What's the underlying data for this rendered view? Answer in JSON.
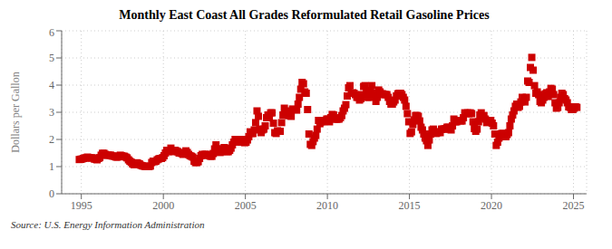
{
  "chart_data": {
    "type": "scatter",
    "title": "Monthly East Coast All Grades Reformulated Retail Gasoline Prices",
    "ylabel": "Dollars per Gallon",
    "annotation": "Source: U.S. Energy Information Administration",
    "color": "#cc0000",
    "marker": "square",
    "grid": true,
    "xlim": [
      1993.8,
      2025.8
    ],
    "xticks": [
      1995,
      2000,
      2005,
      2010,
      2015,
      2020,
      2025
    ],
    "ylim": [
      0,
      6
    ],
    "yticks": [
      0,
      1,
      2,
      3,
      4,
      5,
      6
    ],
    "x": [
      1994.875,
      1994.9583,
      1995.0417,
      1995.125,
      1995.2083,
      1995.2917,
      1995.375,
      1995.4583,
      1995.5417,
      1995.625,
      1995.7083,
      1995.7917,
      1995.875,
      1995.9583,
      1996.0417,
      1996.125,
      1996.2083,
      1996.2917,
      1996.375,
      1996.4583,
      1996.5417,
      1996.625,
      1996.7083,
      1996.7917,
      1996.875,
      1996.9583,
      1997.0417,
      1997.125,
      1997.2083,
      1997.2917,
      1997.375,
      1997.4583,
      1997.5417,
      1997.625,
      1997.7083,
      1997.7917,
      1997.875,
      1997.9583,
      1998.0417,
      1998.125,
      1998.2083,
      1998.2917,
      1998.375,
      1998.4583,
      1998.5417,
      1998.625,
      1998.7083,
      1998.7917,
      1998.875,
      1998.9583,
      1999.0417,
      1999.125,
      1999.2083,
      1999.2917,
      1999.375,
      1999.4583,
      1999.5417,
      1999.625,
      1999.7083,
      1999.7917,
      1999.875,
      1999.9583,
      2000.0417,
      2000.125,
      2000.2083,
      2000.2917,
      2000.375,
      2000.4583,
      2000.5417,
      2000.625,
      2000.7083,
      2000.7917,
      2000.875,
      2000.9583,
      2001.0417,
      2001.125,
      2001.2083,
      2001.2917,
      2001.375,
      2001.4583,
      2001.5417,
      2001.625,
      2001.7083,
      2001.7917,
      2001.875,
      2001.9583,
      2002.0417,
      2002.125,
      2002.2083,
      2002.2917,
      2002.375,
      2002.4583,
      2002.5417,
      2002.625,
      2002.7083,
      2002.7917,
      2002.875,
      2002.9583,
      2003.0417,
      2003.125,
      2003.2083,
      2003.2917,
      2003.375,
      2003.4583,
      2003.5417,
      2003.625,
      2003.7083,
      2003.7917,
      2003.875,
      2003.9583,
      2004.0417,
      2004.125,
      2004.2083,
      2004.2917,
      2004.375,
      2004.4583,
      2004.5417,
      2004.625,
      2004.7083,
      2004.7917,
      2004.875,
      2004.9583,
      2005.0417,
      2005.125,
      2005.2083,
      2005.2917,
      2005.375,
      2005.4583,
      2005.5417,
      2005.625,
      2005.7083,
      2005.7917,
      2005.875,
      2005.9583,
      2006.0417,
      2006.125,
      2006.2083,
      2006.2917,
      2006.375,
      2006.4583,
      2006.5417,
      2006.625,
      2006.7083,
      2006.7917,
      2006.875,
      2006.9583,
      2007.0417,
      2007.125,
      2007.2083,
      2007.2917,
      2007.375,
      2007.4583,
      2007.5417,
      2007.625,
      2007.7083,
      2007.7917,
      2007.875,
      2007.9583,
      2008.0417,
      2008.125,
      2008.2083,
      2008.2917,
      2008.375,
      2008.4583,
      2008.5417,
      2008.625,
      2008.7083,
      2008.7917,
      2008.875,
      2008.9583,
      2009.0417,
      2009.125,
      2009.2083,
      2009.2917,
      2009.375,
      2009.4583,
      2009.5417,
      2009.625,
      2009.7083,
      2009.7917,
      2009.875,
      2009.9583,
      2010.0417,
      2010.125,
      2010.2083,
      2010.2917,
      2010.375,
      2010.4583,
      2010.5417,
      2010.625,
      2010.7083,
      2010.7917,
      2010.875,
      2010.9583,
      2011.0417,
      2011.125,
      2011.2083,
      2011.2917,
      2011.375,
      2011.4583,
      2011.5417,
      2011.625,
      2011.7083,
      2011.7917,
      2011.875,
      2011.9583,
      2012.0417,
      2012.125,
      2012.2083,
      2012.2917,
      2012.375,
      2012.4583,
      2012.5417,
      2012.625,
      2012.7083,
      2012.7917,
      2012.875,
      2012.9583,
      2013.0417,
      2013.125,
      2013.2083,
      2013.2917,
      2013.375,
      2013.4583,
      2013.5417,
      2013.625,
      2013.7083,
      2013.7917,
      2013.875,
      2013.9583,
      2014.0417,
      2014.125,
      2014.2083,
      2014.2917,
      2014.375,
      2014.4583,
      2014.5417,
      2014.625,
      2014.7083,
      2014.7917,
      2014.875,
      2014.9583,
      2015.0417,
      2015.125,
      2015.2083,
      2015.2917,
      2015.375,
      2015.4583,
      2015.5417,
      2015.625,
      2015.7083,
      2015.7917,
      2015.875,
      2015.9583,
      2016.0417,
      2016.125,
      2016.2083,
      2016.2917,
      2016.375,
      2016.4583,
      2016.5417,
      2016.625,
      2016.7083,
      2016.7917,
      2016.875,
      2016.9583,
      2017.0417,
      2017.125,
      2017.2083,
      2017.2917,
      2017.375,
      2017.4583,
      2017.5417,
      2017.625,
      2017.7083,
      2017.7917,
      2017.875,
      2017.9583,
      2018.0417,
      2018.125,
      2018.2083,
      2018.2917,
      2018.375,
      2018.4583,
      2018.5417,
      2018.625,
      2018.7083,
      2018.7917,
      2018.875,
      2018.9583,
      2019.0417,
      2019.125,
      2019.2083,
      2019.2917,
      2019.375,
      2019.4583,
      2019.5417,
      2019.625,
      2019.7083,
      2019.7917,
      2019.875,
      2019.9583,
      2020.0417,
      2020.125,
      2020.2083,
      2020.2917,
      2020.375,
      2020.4583,
      2020.5417,
      2020.625,
      2020.7083,
      2020.7917,
      2020.875,
      2020.9583,
      2021.0417,
      2021.125,
      2021.2083,
      2021.2917,
      2021.375,
      2021.4583,
      2021.5417,
      2021.625,
      2021.7083,
      2021.7917,
      2021.875,
      2021.9583,
      2022.0417,
      2022.125,
      2022.2083,
      2022.2917,
      2022.375,
      2022.4583,
      2022.5417,
      2022.625,
      2022.7083,
      2022.7917,
      2022.875,
      2022.9583,
      2023.0417,
      2023.125,
      2023.2083,
      2023.2917,
      2023.375,
      2023.4583,
      2023.5417,
      2023.625,
      2023.7083,
      2023.7917,
      2023.875,
      2023.9583,
      2024.0417,
      2024.125,
      2024.2083,
      2024.2917,
      2024.375,
      2024.4583,
      2024.5417,
      2024.625,
      2024.7083,
      2024.7917,
      2024.875,
      2024.9583,
      2025.0417,
      2025.125,
      2025.2083
    ],
    "values": [
      1.26,
      1.27,
      1.28,
      1.3,
      1.32,
      1.32,
      1.35,
      1.33,
      1.32,
      1.32,
      1.32,
      1.28,
      1.27,
      1.25,
      1.3,
      1.33,
      1.42,
      1.49,
      1.49,
      1.45,
      1.42,
      1.42,
      1.42,
      1.42,
      1.39,
      1.39,
      1.37,
      1.35,
      1.35,
      1.38,
      1.42,
      1.4,
      1.38,
      1.38,
      1.35,
      1.32,
      1.25,
      1.2,
      1.16,
      1.1,
      1.07,
      1.12,
      1.14,
      1.12,
      1.1,
      1.05,
      1.03,
      1.02,
      1.01,
      1.0,
      1.0,
      1.0,
      1.02,
      1.15,
      1.2,
      1.18,
      1.2,
      1.25,
      1.28,
      1.3,
      1.3,
      1.33,
      1.4,
      1.5,
      1.6,
      1.55,
      1.6,
      1.68,
      1.6,
      1.55,
      1.6,
      1.58,
      1.55,
      1.5,
      1.5,
      1.48,
      1.45,
      1.52,
      1.58,
      1.52,
      1.45,
      1.4,
      1.38,
      1.35,
      1.2,
      1.15,
      1.15,
      1.18,
      1.3,
      1.4,
      1.45,
      1.42,
      1.45,
      1.45,
      1.42,
      1.4,
      1.38,
      1.38,
      1.48,
      1.65,
      1.8,
      1.65,
      1.55,
      1.52,
      1.55,
      1.65,
      1.7,
      1.62,
      1.55,
      1.55,
      1.6,
      1.68,
      1.8,
      1.9,
      2.0,
      1.98,
      1.95,
      1.95,
      1.9,
      2.0,
      2.0,
      1.88,
      1.9,
      1.98,
      2.1,
      2.28,
      2.22,
      2.22,
      2.35,
      2.62,
      3.05,
      2.85,
      2.38,
      2.25,
      2.35,
      2.38,
      2.5,
      2.8,
      2.9,
      2.8,
      2.98,
      2.98,
      2.6,
      2.25,
      2.22,
      2.32,
      2.3,
      2.3,
      2.62,
      2.9,
      3.15,
      3.05,
      3.02,
      2.88,
      2.88,
      2.85,
      3.12,
      3.1,
      3.1,
      3.08,
      3.3,
      3.55,
      3.85,
      4.1,
      4.05,
      3.75,
      3.7,
      3.1,
      2.2,
      1.82,
      1.78,
      1.92,
      2.05,
      2.15,
      2.38,
      2.7,
      2.58,
      2.65,
      2.65,
      2.68,
      2.7,
      2.75,
      2.75,
      2.65,
      2.8,
      2.92,
      2.9,
      2.75,
      2.75,
      2.75,
      2.75,
      2.8,
      2.88,
      3.05,
      3.15,
      3.28,
      3.6,
      3.9,
      3.98,
      3.7,
      3.72,
      3.7,
      3.65,
      3.55,
      3.55,
      3.45,
      3.5,
      3.65,
      3.95,
      3.98,
      3.8,
      3.55,
      3.55,
      3.8,
      3.98,
      3.7,
      3.58,
      3.4,
      3.55,
      3.82,
      3.75,
      3.68,
      3.68,
      3.65,
      3.65,
      3.65,
      3.55,
      3.4,
      3.3,
      3.3,
      3.38,
      3.45,
      3.6,
      3.68,
      3.7,
      3.7,
      3.65,
      3.55,
      3.45,
      3.22,
      2.95,
      2.65,
      2.22,
      2.28,
      2.55,
      2.72,
      2.88,
      2.88,
      2.85,
      2.68,
      2.45,
      2.35,
      2.2,
      2.05,
      1.95,
      1.78,
      1.98,
      2.2,
      2.35,
      2.38,
      2.28,
      2.22,
      2.25,
      2.28,
      2.25,
      2.38,
      2.38,
      2.38,
      2.4,
      2.45,
      2.45,
      2.38,
      2.35,
      2.5,
      2.75,
      2.65,
      2.65,
      2.7,
      2.7,
      2.68,
      2.68,
      2.8,
      2.98,
      2.95,
      2.98,
      2.95,
      2.98,
      2.95,
      2.65,
      2.4,
      2.3,
      2.38,
      2.65,
      2.9,
      2.98,
      2.8,
      2.88,
      2.75,
      2.62,
      2.65,
      2.65,
      2.7,
      2.6,
      2.5,
      2.2,
      1.78,
      1.9,
      2.05,
      2.2,
      2.22,
      2.22,
      2.2,
      2.1,
      2.18,
      2.25,
      2.5,
      2.75,
      2.9,
      3.05,
      3.22,
      3.3,
      3.18,
      3.22,
      3.38,
      3.55,
      3.48,
      3.38,
      3.55,
      4.15,
      4.1,
      4.65,
      5.02,
      4.55,
      3.98,
      3.7,
      3.75,
      3.65,
      3.4,
      3.35,
      3.45,
      3.55,
      3.68,
      3.72,
      3.58,
      3.75,
      3.88,
      3.85,
      3.65,
      3.35,
      3.15,
      3.18,
      3.35,
      3.55,
      3.7,
      3.65,
      3.5,
      3.45,
      3.35,
      3.2,
      3.18,
      3.1,
      3.1,
      3.15,
      3.2,
      3.18
    ]
  }
}
